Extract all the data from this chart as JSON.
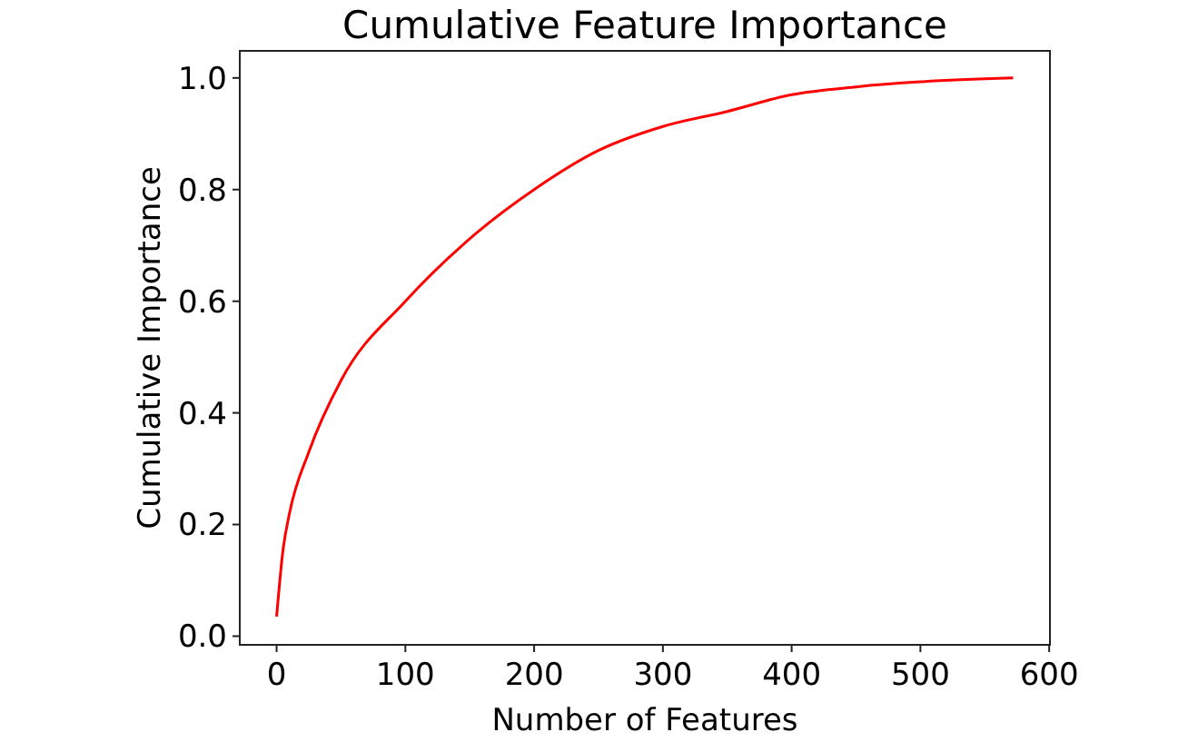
{
  "chart_data": {
    "type": "line",
    "title": "Cumulative Feature Importance",
    "xlabel": "Number of Features",
    "ylabel": "Cumulative Importance",
    "x": [
      0,
      5,
      10,
      25,
      50,
      100,
      150,
      200,
      250,
      300,
      350,
      400,
      450,
      500,
      572
    ],
    "series": [
      {
        "color": "#ff0000",
        "values": [
          0.035,
          0.155,
          0.22,
          0.33,
          0.458,
          0.6,
          0.712,
          0.8,
          0.87,
          0.913,
          0.94,
          0.97,
          0.984,
          0.993,
          1.0
        ]
      }
    ],
    "xlim": [
      -28.6,
      600.6
    ],
    "ylim": [
      -0.0155,
      1.0485
    ],
    "xticks": [
      0,
      100,
      200,
      300,
      400,
      500,
      600
    ],
    "yticks": [
      {
        "value": 0,
        "label": "0.0"
      },
      {
        "value": 0.2,
        "label": "0.2"
      },
      {
        "value": 0.4,
        "label": "0.4"
      },
      {
        "value": 0.6,
        "label": "0.6"
      },
      {
        "value": 0.8,
        "label": "0.8"
      },
      {
        "value": 1,
        "label": "1.0"
      }
    ],
    "grid": false,
    "marker": "none",
    "line_style": "solid"
  }
}
